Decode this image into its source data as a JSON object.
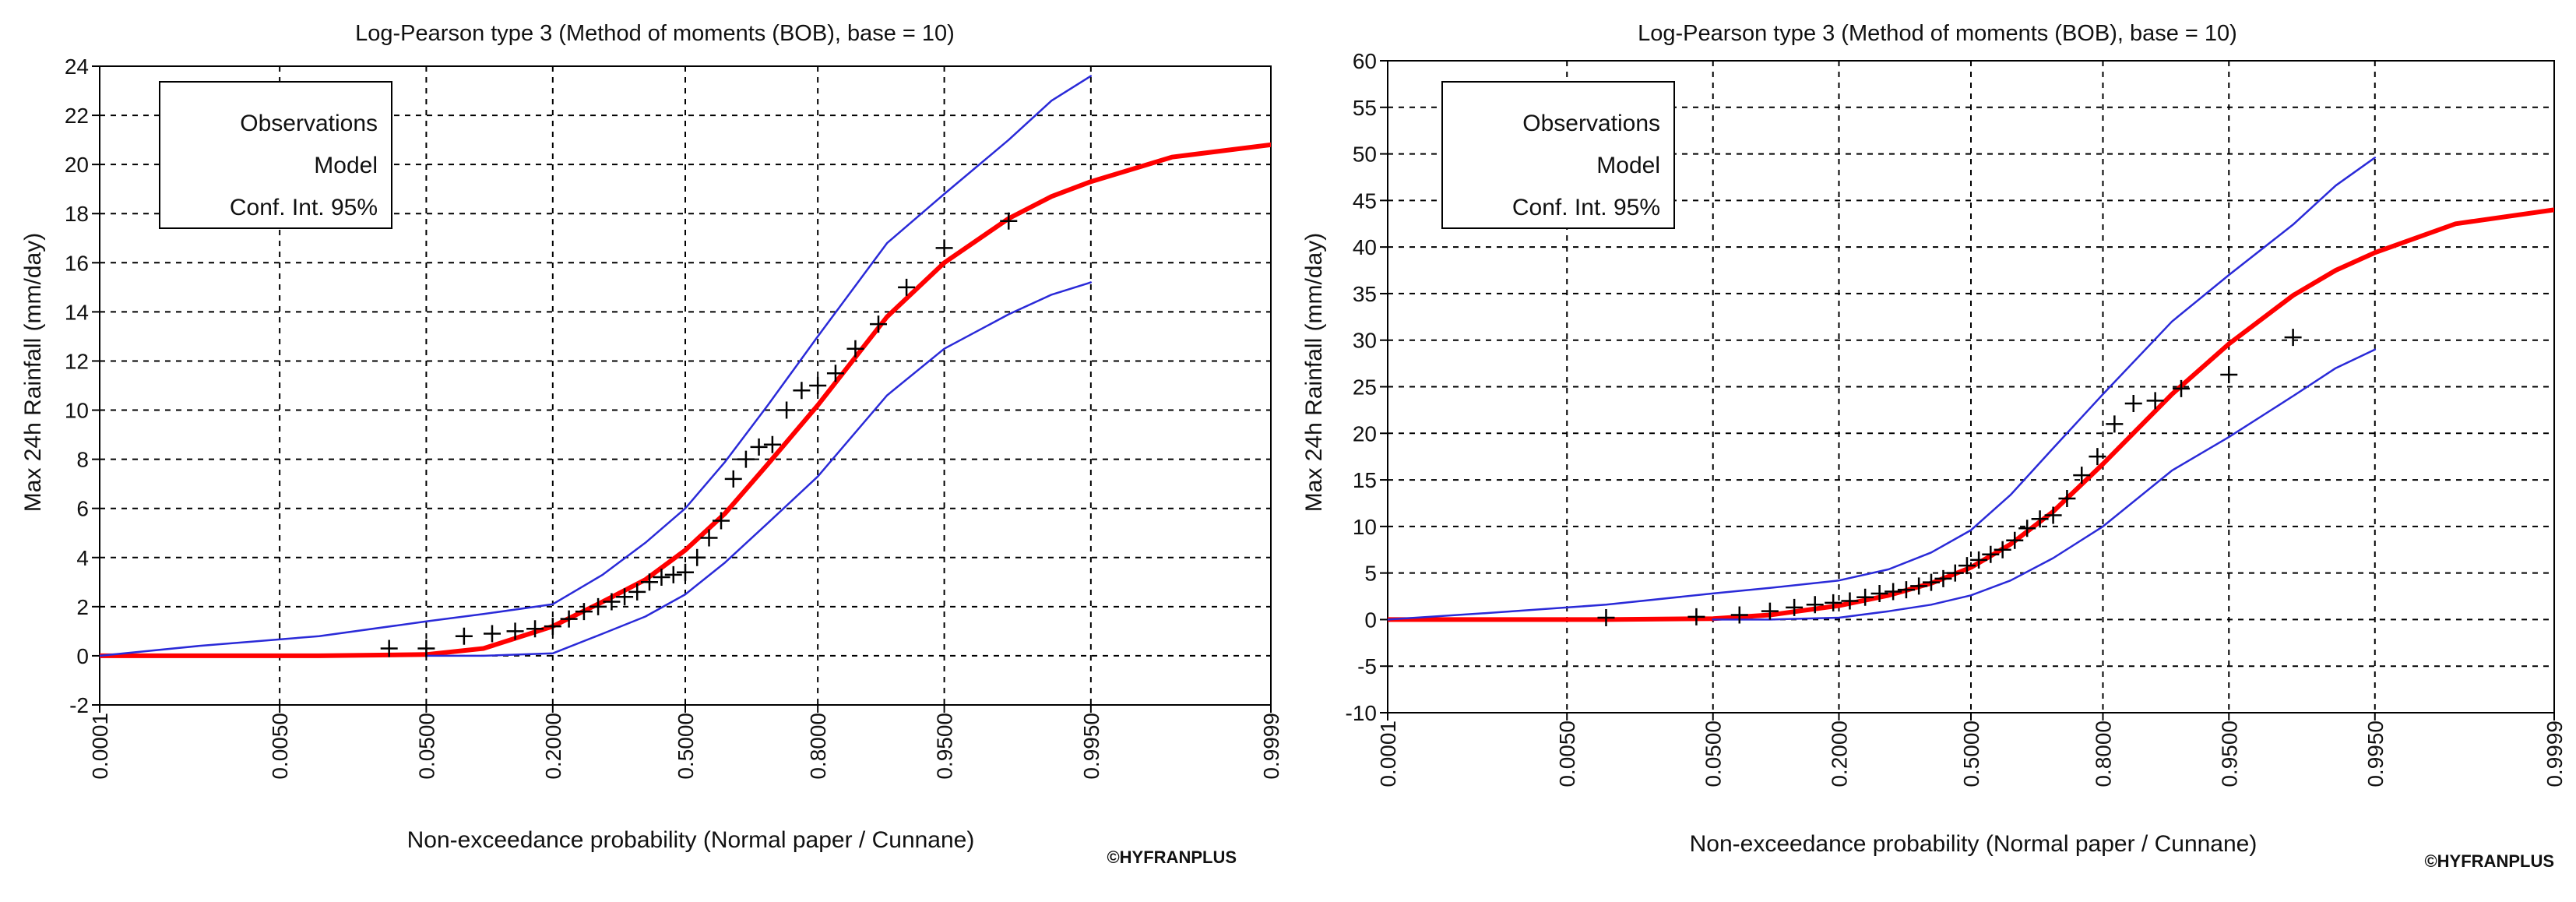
{
  "colors": {
    "background": "#ffffff",
    "grid": "#000000",
    "observations": "#000000",
    "model": "#ff0000",
    "confidence": "#2a2ad8",
    "text": "#111111"
  },
  "chart_data": [
    {
      "type": "scatter",
      "title": "Log-Pearson type 3 (Method of moments (BOB), base = 10)",
      "xlabel": "Non-exceedance probability (Normal paper / Cunnane)",
      "ylabel": "Max 24h Rainfall (mm/day)",
      "x_scale": "normal-probability",
      "x_ticks": [
        "0.0001",
        "0.0050",
        "0.0500",
        "0.2000",
        "0.5000",
        "0.8000",
        "0.9500",
        "0.9950",
        "0.9999"
      ],
      "ylim": [
        -2,
        24
      ],
      "y_ticks": [
        "-2",
        "0",
        "2",
        "4",
        "6",
        "8",
        "10",
        "12",
        "14",
        "16",
        "18",
        "20",
        "22",
        "24"
      ],
      "grid": true,
      "legend": {
        "position": "top-left",
        "entries": [
          "Observations",
          "Model",
          "Conf. Int. 95%"
        ]
      },
      "watermark": "©HYFRANPLUS",
      "series": [
        {
          "name": "Observations",
          "kind": "markers",
          "x": [
            0.03,
            0.05,
            0.08,
            0.11,
            0.14,
            0.17,
            0.2,
            0.23,
            0.26,
            0.29,
            0.32,
            0.35,
            0.38,
            0.41,
            0.44,
            0.47,
            0.5,
            0.53,
            0.56,
            0.59,
            0.62,
            0.65,
            0.68,
            0.71,
            0.74,
            0.77,
            0.8,
            0.83,
            0.86,
            0.89,
            0.92,
            0.95,
            0.98
          ],
          "y": [
            0.3,
            0.3,
            0.8,
            0.9,
            1.0,
            1.1,
            1.2,
            1.5,
            1.8,
            2.0,
            2.2,
            2.4,
            2.6,
            3.0,
            3.2,
            3.3,
            3.4,
            4.0,
            4.8,
            5.5,
            7.2,
            8.0,
            8.5,
            8.6,
            10.0,
            10.8,
            11.0,
            11.5,
            12.5,
            13.5,
            15.0,
            16.6,
            17.7
          ]
        },
        {
          "name": "Model",
          "kind": "line",
          "x": [
            0.0001,
            0.001,
            0.01,
            0.05,
            0.1,
            0.2,
            0.3,
            0.4,
            0.5,
            0.6,
            0.7,
            0.8,
            0.9,
            0.95,
            0.98,
            0.99,
            0.995,
            0.999,
            0.9999
          ],
          "y": [
            0,
            0,
            0,
            0.05,
            0.3,
            1.2,
            2.2,
            3.1,
            4.3,
            5.8,
            7.8,
            10.2,
            13.8,
            16.0,
            17.8,
            18.7,
            19.3,
            20.3,
            20.8
          ]
        },
        {
          "name": "Conf. Int. 95% upper",
          "kind": "line",
          "x": [
            0.0001,
            0.001,
            0.01,
            0.05,
            0.1,
            0.2,
            0.3,
            0.4,
            0.5,
            0.6,
            0.7,
            0.8,
            0.9,
            0.95,
            0.98,
            0.99,
            0.995
          ],
          "y": [
            0,
            0.4,
            0.8,
            1.4,
            1.7,
            2.1,
            3.3,
            4.6,
            6.0,
            7.9,
            10.2,
            13.0,
            16.8,
            18.8,
            21.0,
            22.6,
            23.6
          ]
        },
        {
          "name": "Conf. Int. 95% lower",
          "kind": "line",
          "x": [
            0.05,
            0.1,
            0.2,
            0.3,
            0.4,
            0.5,
            0.6,
            0.7,
            0.8,
            0.9,
            0.95,
            0.98,
            0.99,
            0.995
          ],
          "y": [
            0,
            0,
            0.1,
            0.9,
            1.6,
            2.5,
            3.8,
            5.4,
            7.3,
            10.6,
            12.5,
            13.9,
            14.7,
            15.2
          ]
        }
      ]
    },
    {
      "type": "scatter",
      "title": "Log-Pearson type 3 (Method of moments (BOB), base = 10)",
      "xlabel": "Non-exceedance probability (Normal paper / Cunnane)",
      "ylabel": "Max 24h Rainfall (mm/day)",
      "x_scale": "normal-probability",
      "x_ticks": [
        "0.0001",
        "0.0050",
        "0.0500",
        "0.2000",
        "0.5000",
        "0.8000",
        "0.9500",
        "0.9950",
        "0.9999"
      ],
      "ylim": [
        -10,
        60
      ],
      "y_ticks": [
        "-10",
        "-5",
        "0",
        "5",
        "10",
        "15",
        "20",
        "25",
        "30",
        "35",
        "40",
        "45",
        "50",
        "55",
        "60"
      ],
      "grid": true,
      "legend": {
        "position": "top-left",
        "entries": [
          "Observations",
          "Model",
          "Conf. Int. 95%"
        ]
      },
      "watermark": "©HYFRANPLUS",
      "series": [
        {
          "name": "Observations",
          "kind": "markers",
          "x": [
            0.01,
            0.04,
            0.07,
            0.1,
            0.13,
            0.16,
            0.19,
            0.22,
            0.25,
            0.28,
            0.31,
            0.34,
            0.37,
            0.4,
            0.43,
            0.46,
            0.49,
            0.52,
            0.55,
            0.58,
            0.61,
            0.64,
            0.67,
            0.7,
            0.73,
            0.76,
            0.79,
            0.82,
            0.85,
            0.88,
            0.91,
            0.95,
            0.98
          ],
          "y": [
            0.2,
            0.3,
            0.5,
            0.9,
            1.3,
            1.6,
            1.8,
            2.0,
            2.4,
            2.8,
            3.0,
            3.2,
            3.6,
            4.0,
            4.4,
            5.0,
            5.8,
            6.4,
            7.0,
            7.5,
            8.5,
            9.8,
            10.8,
            11.2,
            13.0,
            15.5,
            17.5,
            21.0,
            23.2,
            23.5,
            24.8,
            26.3,
            30.3
          ]
        },
        {
          "name": "Model",
          "kind": "line",
          "x": [
            0.0001,
            0.001,
            0.01,
            0.05,
            0.1,
            0.2,
            0.3,
            0.4,
            0.5,
            0.6,
            0.7,
            0.8,
            0.9,
            0.95,
            0.98,
            0.99,
            0.995,
            0.999,
            0.9999
          ],
          "y": [
            0,
            0,
            0,
            0.1,
            0.5,
            1.5,
            2.6,
            3.9,
            5.6,
            8.1,
            11.6,
            16.7,
            24.2,
            29.6,
            34.8,
            37.5,
            39.4,
            42.5,
            44.0
          ]
        },
        {
          "name": "Conf. Int. 95% upper",
          "kind": "line",
          "x": [
            0.0001,
            0.001,
            0.01,
            0.05,
            0.1,
            0.2,
            0.3,
            0.4,
            0.5,
            0.6,
            0.7,
            0.8,
            0.9,
            0.95,
            0.98,
            0.99,
            0.995
          ],
          "y": [
            0,
            0.7,
            1.6,
            2.8,
            3.4,
            4.2,
            5.4,
            7.2,
            9.6,
            13.4,
            18.4,
            24.2,
            32.0,
            37.0,
            42.4,
            46.6,
            49.6
          ]
        },
        {
          "name": "Conf. Int. 95% lower",
          "kind": "line",
          "x": [
            0.05,
            0.1,
            0.2,
            0.3,
            0.4,
            0.5,
            0.6,
            0.7,
            0.8,
            0.9,
            0.95,
            0.98,
            0.99,
            0.995
          ],
          "y": [
            0,
            0,
            0.2,
            0.9,
            1.6,
            2.6,
            4.2,
            6.6,
            10.0,
            16.0,
            19.6,
            24.0,
            27.0,
            29.0
          ]
        }
      ]
    }
  ]
}
